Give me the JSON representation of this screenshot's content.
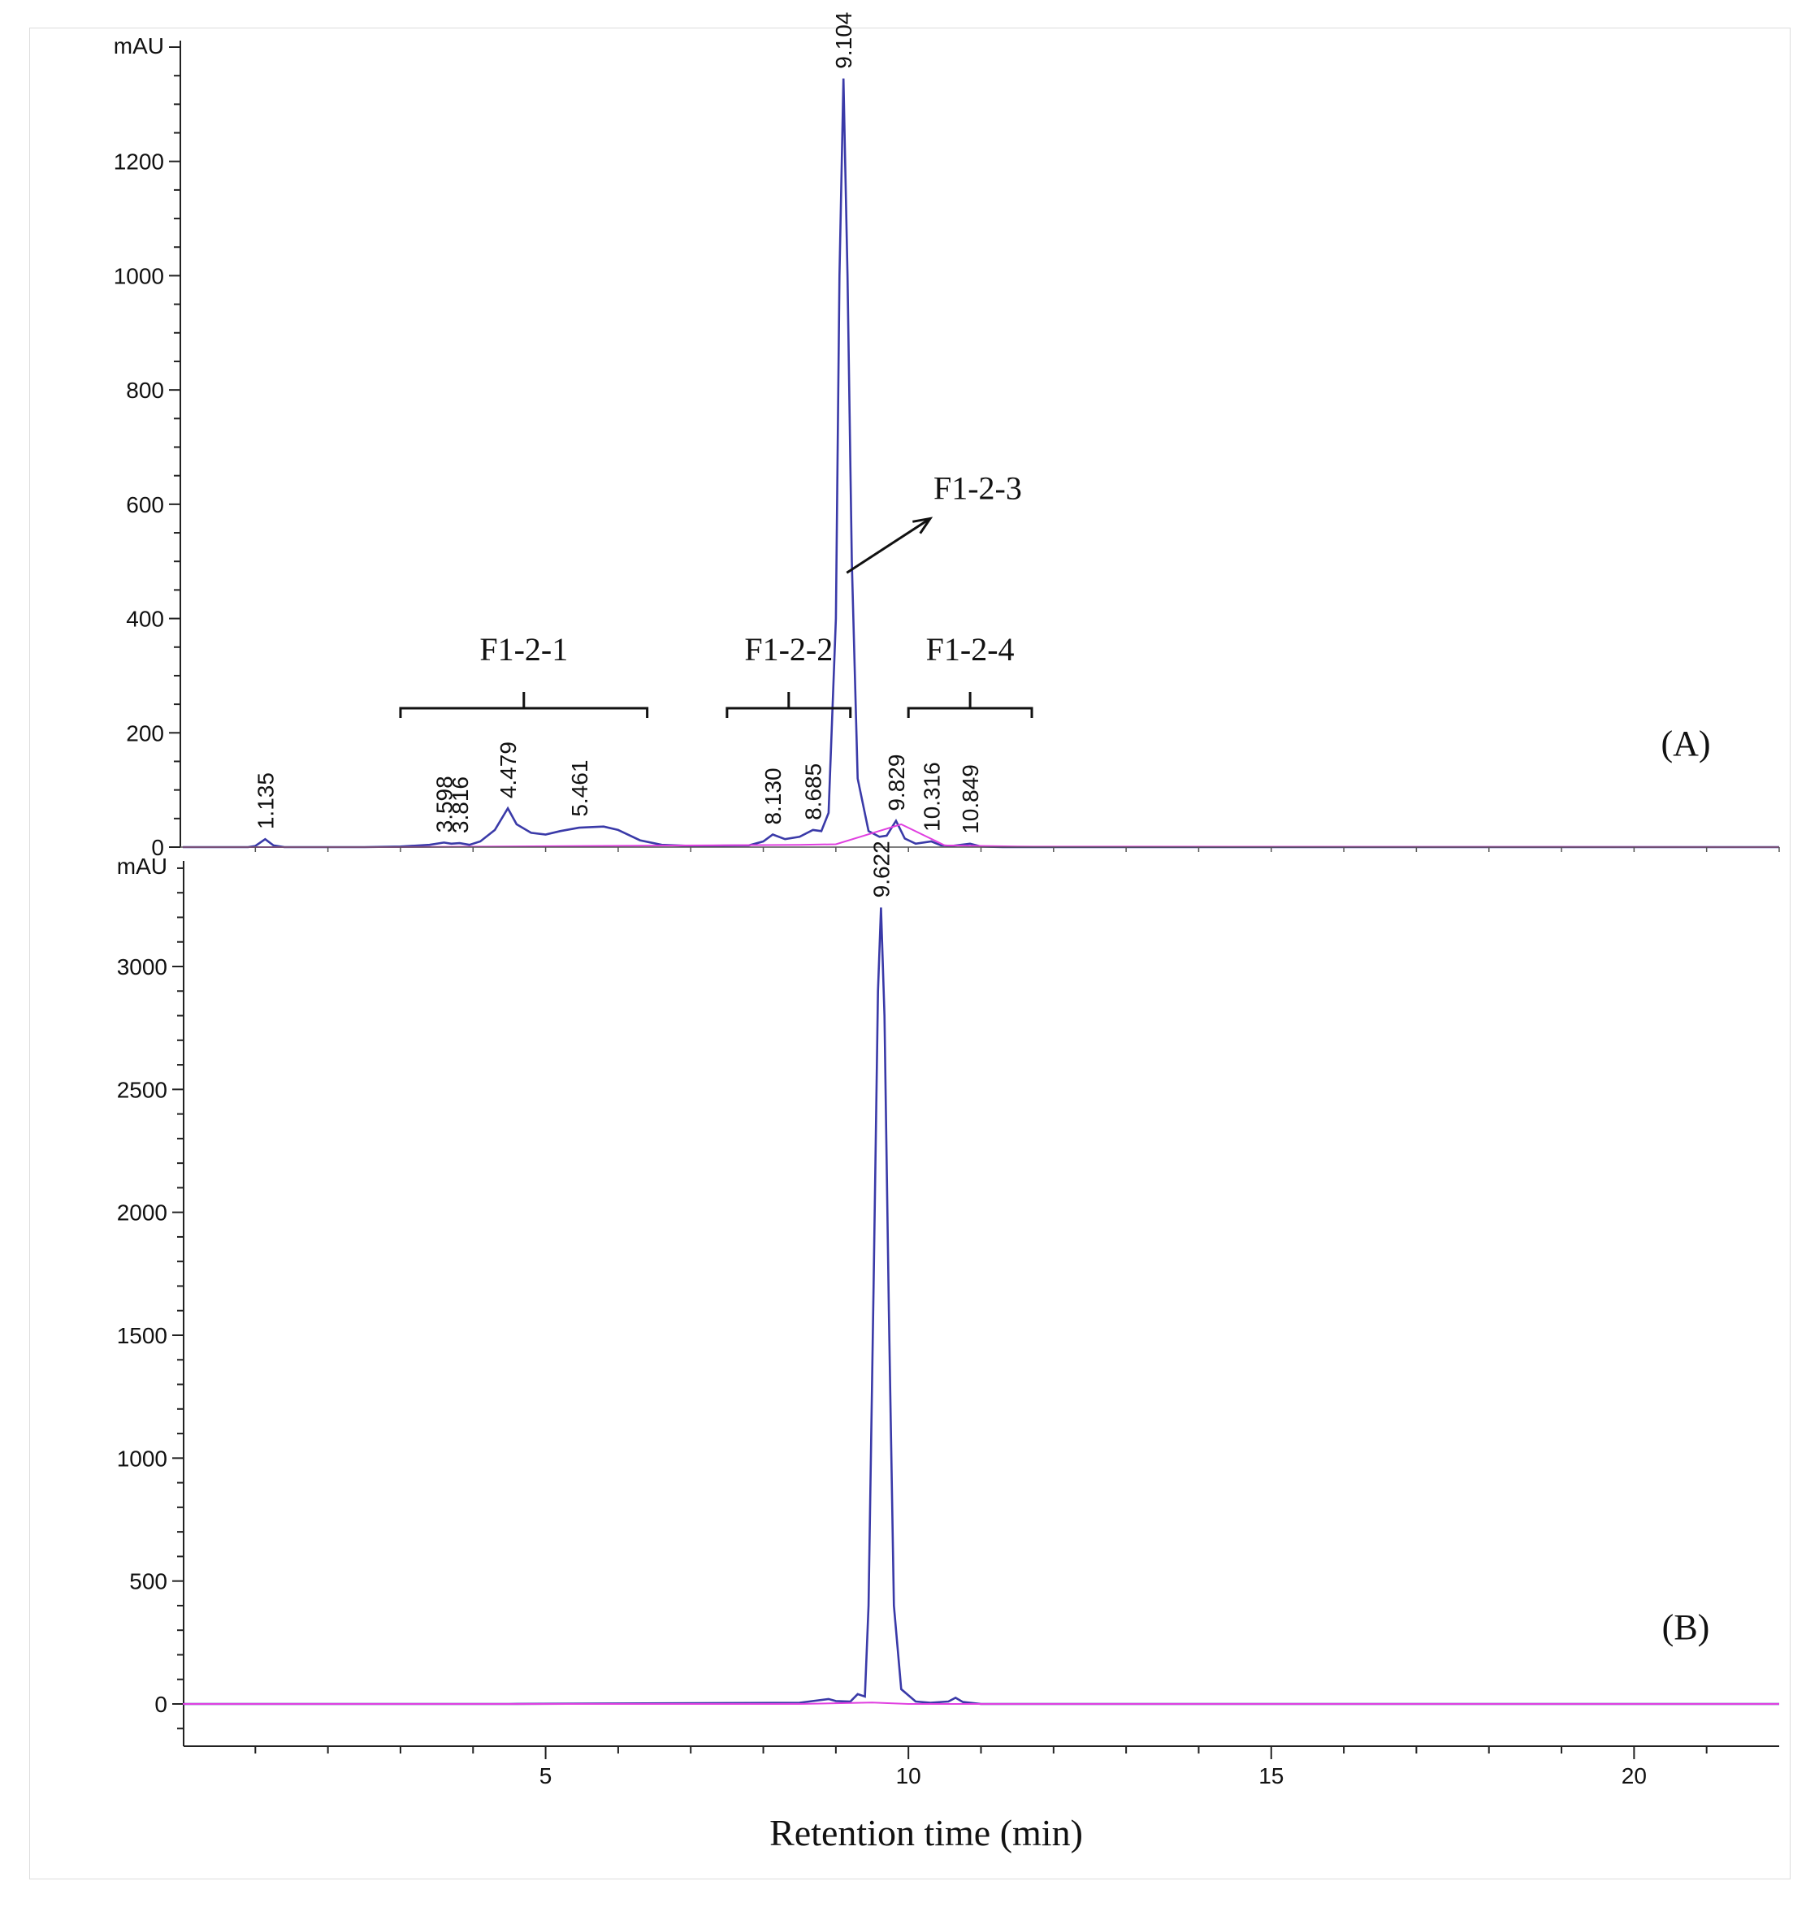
{
  "chart_data": [
    {
      "type": "line",
      "panel_label": "(A)",
      "y_unit": "mAU",
      "ylim": [
        0,
        1400
      ],
      "y_ticks": [
        0,
        200,
        400,
        600,
        800,
        1000,
        1200
      ],
      "xlim": [
        0,
        22
      ],
      "series": [
        {
          "color": "#3a3aa8",
          "x": [
            0,
            0.9,
            1.0,
            1.135,
            1.25,
            1.4,
            2.5,
            3.0,
            3.4,
            3.598,
            3.7,
            3.816,
            3.95,
            4.1,
            4.3,
            4.479,
            4.6,
            4.8,
            5.0,
            5.2,
            5.461,
            5.8,
            6.0,
            6.3,
            6.6,
            7.0,
            7.8,
            8.0,
            8.13,
            8.3,
            8.5,
            8.685,
            8.8,
            8.9,
            9.0,
            9.05,
            9.104,
            9.16,
            9.22,
            9.3,
            9.45,
            9.6,
            9.7,
            9.829,
            9.95,
            10.1,
            10.316,
            10.45,
            10.6,
            10.849,
            11.0,
            11.3,
            12,
            15,
            18,
            22
          ],
          "y": [
            0,
            0,
            2,
            14,
            3,
            0,
            0,
            1,
            4,
            8,
            6,
            7,
            4,
            10,
            30,
            68,
            40,
            25,
            22,
            28,
            34,
            36,
            30,
            12,
            4,
            2,
            3,
            10,
            22,
            14,
            18,
            30,
            28,
            60,
            400,
            1000,
            1345,
            1000,
            500,
            120,
            28,
            18,
            20,
            46,
            15,
            6,
            10,
            3,
            2,
            6,
            1,
            0,
            0,
            0,
            0,
            0
          ]
        },
        {
          "color": "#e040e0",
          "x": [
            0,
            3.0,
            5.5,
            8.5,
            9.0,
            9.9,
            10.5,
            11.5,
            22
          ],
          "y": [
            0,
            0,
            2,
            4,
            5,
            40,
            3,
            1,
            0
          ]
        }
      ],
      "peak_labels": [
        {
          "text": "1.135",
          "x": 1.135,
          "y": 14
        },
        {
          "text": "3.598",
          "x": 3.598,
          "y": 8
        },
        {
          "text": "3.816",
          "x": 3.816,
          "y": 7
        },
        {
          "text": "4.479",
          "x": 4.479,
          "y": 68
        },
        {
          "text": "5.461",
          "x": 5.461,
          "y": 36
        },
        {
          "text": "8.130",
          "x": 8.13,
          "y": 22
        },
        {
          "text": "8.685",
          "x": 8.685,
          "y": 30
        },
        {
          "text": "9.104",
          "x": 9.104,
          "y": 1345
        },
        {
          "text": "9.829",
          "x": 9.829,
          "y": 46
        },
        {
          "text": "10.316",
          "x": 10.316,
          "y": 10
        },
        {
          "text": "10.849",
          "x": 10.849,
          "y": 6
        }
      ],
      "fractions": [
        {
          "label": "F1-2-1",
          "x_start": 3.0,
          "x_end": 6.4
        },
        {
          "label": "F1-2-2",
          "x_start": 7.5,
          "x_end": 9.2
        },
        {
          "label": "F1-2-4",
          "x_start": 10.0,
          "x_end": 11.7
        }
      ],
      "arrow_annotation": {
        "label": "F1-2-3",
        "from": [
          9.15,
          480
        ],
        "to": [
          10.3,
          575
        ]
      }
    },
    {
      "type": "line",
      "panel_label": "(B)",
      "y_unit": "mAU",
      "ylim": [
        -150,
        3400
      ],
      "y_ticks": [
        0,
        500,
        1000,
        1500,
        2000,
        2500,
        3000
      ],
      "xlim": [
        0,
        22
      ],
      "x_ticks": [
        5,
        10,
        15,
        20
      ],
      "xlabel": "Retention time (min)",
      "series": [
        {
          "color": "#3a3aa8",
          "x": [
            0,
            4.5,
            6.0,
            8.5,
            8.9,
            9.0,
            9.2,
            9.3,
            9.4,
            9.45,
            9.52,
            9.58,
            9.622,
            9.67,
            9.73,
            9.8,
            9.9,
            10.1,
            10.3,
            10.55,
            10.65,
            10.75,
            11,
            15,
            20,
            22
          ],
          "y": [
            0,
            0,
            2,
            5,
            20,
            12,
            10,
            40,
            30,
            400,
            1700,
            2900,
            3240,
            2800,
            1600,
            400,
            60,
            10,
            5,
            10,
            25,
            8,
            0,
            0,
            0,
            0
          ]
        },
        {
          "color": "#e040e0",
          "x": [
            0,
            8.5,
            9.5,
            10.0,
            22
          ],
          "y": [
            0,
            0,
            6,
            0,
            0
          ]
        }
      ],
      "peak_labels": [
        {
          "text": "9.622",
          "x": 9.622,
          "y": 3240
        }
      ]
    }
  ]
}
